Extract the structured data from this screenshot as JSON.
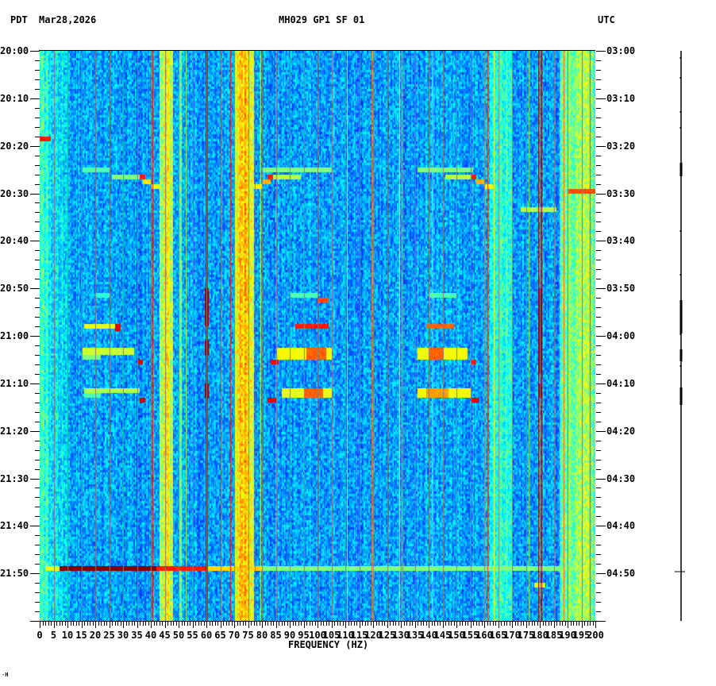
{
  "header": {
    "timezone_left": "PDT",
    "date": "Mar28,2026",
    "title": "MH029 GP1 SF 01",
    "timezone_right": "UTC"
  },
  "footer": {
    "corner_mark": "⋅H"
  },
  "chart_data": {
    "type": "heatmap",
    "title": "MH029 GP1 SF 01",
    "subtitle": "Mar28,2026",
    "xlabel": "FREQUENCY (HZ)",
    "ylabel_left": "PDT",
    "ylabel_right": "UTC",
    "xlim": [
      0,
      200
    ],
    "x_ticks": [
      0,
      5,
      10,
      15,
      20,
      25,
      30,
      35,
      40,
      45,
      50,
      55,
      60,
      65,
      70,
      75,
      80,
      85,
      90,
      95,
      100,
      105,
      110,
      115,
      120,
      125,
      130,
      135,
      140,
      145,
      150,
      155,
      160,
      165,
      170,
      175,
      180,
      185,
      190,
      195,
      200
    ],
    "x_tick_labels": [
      "0",
      "5",
      "10",
      "15",
      "20",
      "25",
      "30",
      "35",
      "40",
      "45",
      "50",
      "55",
      "60",
      "65",
      "70",
      "75",
      "80",
      "85",
      "90",
      "95",
      "100",
      "105",
      "110",
      "115",
      "120",
      "125",
      "130",
      "135",
      "140",
      "145",
      "150",
      "155",
      "160",
      "165",
      "170",
      "175",
      "180",
      "185",
      "190",
      "195",
      "200"
    ],
    "y_ticks_left": [
      "20:00",
      "20:10",
      "20:20",
      "20:30",
      "20:40",
      "20:50",
      "21:00",
      "21:10",
      "21:20",
      "21:30",
      "21:40",
      "21:50"
    ],
    "y_ticks_right": [
      "03:00",
      "03:10",
      "03:20",
      "03:30",
      "03:40",
      "03:50",
      "04:00",
      "04:10",
      "04:20",
      "04:30",
      "04:40",
      "04:50"
    ],
    "time_span_minutes": 120,
    "minor_tick_minutes": 2,
    "colormap": "jet",
    "colormap_stops": [
      "#00008f",
      "#0000ff",
      "#0080ff",
      "#00ffff",
      "#80ff80",
      "#ffff00",
      "#ff8000",
      "#ff0000",
      "#800000"
    ],
    "background_level": 0.28,
    "grid_lines_hz": [
      5,
      10,
      15,
      20,
      25,
      30,
      35,
      40,
      45,
      50,
      55,
      60,
      65,
      70,
      75,
      80,
      85,
      90,
      95,
      100,
      105,
      110,
      115,
      120,
      125,
      130,
      135,
      140,
      145,
      150,
      155,
      160,
      165,
      170,
      175,
      180,
      185,
      190,
      195
    ],
    "grid_color": "#808080",
    "continuous_bands": [
      {
        "f0": 0,
        "f1": 3,
        "level": 0.42
      },
      {
        "f0": 3,
        "f1": 10,
        "level": 0.36
      },
      {
        "f0": 43,
        "f1": 48,
        "level": 0.55
      },
      {
        "f0": 44.5,
        "f1": 46.5,
        "level": 0.62
      },
      {
        "f0": 50,
        "f1": 51,
        "level": 0.45
      },
      {
        "f0": 70,
        "f1": 77,
        "level": 0.62
      },
      {
        "f0": 72,
        "f1": 75,
        "level": 0.68
      },
      {
        "f0": 162,
        "f1": 170,
        "level": 0.42
      },
      {
        "f0": 187,
        "f1": 200,
        "level": 0.48
      },
      {
        "f0": 193,
        "f1": 198,
        "level": 0.55
      }
    ],
    "tonal_lines": [
      {
        "f": 40.5,
        "level": 0.85
      },
      {
        "f": 46.5,
        "level": 0.6
      },
      {
        "f": 52.5,
        "level": 0.58
      },
      {
        "f": 59.7,
        "level": 0.95
      },
      {
        "f": 60.3,
        "level": 0.9
      },
      {
        "f": 68.5,
        "level": 0.85
      },
      {
        "f": 77.5,
        "level": 0.8
      },
      {
        "f": 79.5,
        "level": 0.55
      },
      {
        "f": 95,
        "level": 0.6
      },
      {
        "f": 110.5,
        "level": 0.52
      },
      {
        "f": 119.5,
        "level": 0.78
      },
      {
        "f": 129.5,
        "level": 0.55
      },
      {
        "f": 130.5,
        "level": 0.78
      },
      {
        "f": 141.5,
        "level": 0.5
      },
      {
        "f": 161,
        "level": 0.82
      },
      {
        "f": 163.5,
        "level": 0.62
      },
      {
        "f": 176,
        "level": 0.55
      },
      {
        "f": 179.4,
        "level": 0.98
      },
      {
        "f": 180,
        "level": 1.0
      },
      {
        "f": 180.6,
        "level": 0.98
      },
      {
        "f": 188.5,
        "level": 0.78
      },
      {
        "f": 190.5,
        "level": 0.65
      },
      {
        "f": 198,
        "level": 0.82
      }
    ],
    "events": [
      {
        "label": "transient",
        "t0": 18,
        "t1": 19,
        "f0": 0,
        "f1": 4,
        "level": 0.85
      },
      {
        "label": "sweep-1a",
        "t0": 24.5,
        "t1": 25.5,
        "f0": 15,
        "f1": 25,
        "level": 0.45
      },
      {
        "label": "sweep-1b",
        "t0": 26,
        "t1": 27,
        "f0": 26,
        "f1": 37,
        "level": 0.5
      },
      {
        "label": "sweep-1c",
        "t0": 26,
        "t1": 27,
        "f0": 36,
        "f1": 38,
        "level": 0.85
      },
      {
        "label": "sweep-1d",
        "t0": 27,
        "t1": 28,
        "f0": 37,
        "f1": 40,
        "level": 0.65
      },
      {
        "label": "sweep-1e",
        "t0": 28,
        "t1": 29,
        "f0": 40,
        "f1": 43,
        "level": 0.6
      },
      {
        "label": "sweep-2a",
        "t0": 24.5,
        "t1": 25.5,
        "f0": 80,
        "f1": 105,
        "level": 0.5
      },
      {
        "label": "sweep-2b",
        "t0": 26,
        "t1": 27,
        "f0": 83,
        "f1": 94,
        "level": 0.55
      },
      {
        "label": "sweep-2c",
        "t0": 26,
        "t1": 27,
        "f0": 82,
        "f1": 84,
        "level": 0.85
      },
      {
        "label": "sweep-2d",
        "t0": 27,
        "t1": 28,
        "f0": 80,
        "f1": 83,
        "level": 0.7
      },
      {
        "label": "sweep-2e",
        "t0": 28,
        "t1": 29,
        "f0": 77,
        "f1": 80,
        "level": 0.62
      },
      {
        "label": "sweep-3a",
        "t0": 24.5,
        "t1": 25.5,
        "f0": 136,
        "f1": 156,
        "level": 0.5
      },
      {
        "label": "sweep-3b",
        "t0": 26,
        "t1": 27,
        "f0": 146,
        "f1": 156,
        "level": 0.55
      },
      {
        "label": "sweep-3c",
        "t0": 26,
        "t1": 27,
        "f0": 155,
        "f1": 157,
        "level": 0.85
      },
      {
        "label": "sweep-3d",
        "t0": 27,
        "t1": 28,
        "f0": 157,
        "f1": 160,
        "level": 0.7
      },
      {
        "label": "sweep-3e",
        "t0": 28,
        "t1": 29,
        "f0": 160,
        "f1": 163,
        "level": 0.62
      },
      {
        "label": "sweep-4a",
        "t0": 29,
        "t1": 30,
        "f0": 190,
        "f1": 200,
        "level": 0.8
      },
      {
        "label": "line-33",
        "t0": 33,
        "t1": 34,
        "f0": 173,
        "f1": 186,
        "level": 0.55
      },
      {
        "label": "pre-1",
        "t0": 51,
        "t1": 52,
        "f0": 20,
        "f1": 25,
        "level": 0.42
      },
      {
        "label": "pre-2",
        "t0": 51,
        "t1": 52,
        "f0": 90,
        "f1": 100,
        "level": 0.45
      },
      {
        "label": "pre-2b",
        "t0": 52,
        "t1": 53,
        "f0": 100,
        "f1": 104,
        "level": 0.8
      },
      {
        "label": "pre-3",
        "t0": 51,
        "t1": 52,
        "f0": 140,
        "f1": 150,
        "level": 0.45
      },
      {
        "label": "burst-1a",
        "t0": 57.5,
        "t1": 58.5,
        "f0": 16,
        "f1": 27,
        "level": 0.6
      },
      {
        "label": "burst-1a-end",
        "t0": 57.5,
        "t1": 59,
        "f0": 27,
        "f1": 29,
        "level": 0.9
      },
      {
        "label": "burst-1b",
        "t0": 62.5,
        "t1": 64,
        "f0": 15,
        "f1": 34,
        "level": 0.58
      },
      {
        "label": "burst-1c",
        "t0": 64,
        "t1": 65,
        "f0": 15,
        "f1": 22,
        "level": 0.5
      },
      {
        "label": "burst-1d",
        "t0": 65,
        "t1": 66,
        "f0": 35,
        "f1": 37,
        "level": 0.9
      },
      {
        "label": "burst-1e",
        "t0": 71,
        "t1": 72,
        "f0": 16,
        "f1": 36,
        "level": 0.55
      },
      {
        "label": "burst-1f",
        "t0": 72,
        "t1": 73,
        "f0": 16,
        "f1": 22,
        "level": 0.45
      },
      {
        "label": "burst-1g",
        "t0": 73,
        "t1": 74,
        "f0": 36,
        "f1": 38,
        "level": 0.92
      },
      {
        "label": "burst-2a",
        "t0": 57.5,
        "t1": 58.5,
        "f0": 92,
        "f1": 104,
        "level": 0.85
      },
      {
        "label": "burst-2b",
        "t0": 62.5,
        "t1": 65,
        "f0": 85,
        "f1": 105,
        "level": 0.62
      },
      {
        "label": "burst-2b-hot",
        "t0": 62.5,
        "t1": 65,
        "f0": 96,
        "f1": 103,
        "level": 0.78
      },
      {
        "label": "burst-2c",
        "t0": 65,
        "t1": 66,
        "f0": 83,
        "f1": 86,
        "level": 0.88
      },
      {
        "label": "burst-2d",
        "t0": 71,
        "t1": 73,
        "f0": 87,
        "f1": 105,
        "level": 0.6
      },
      {
        "label": "burst-2d-hot",
        "t0": 71,
        "t1": 73,
        "f0": 95,
        "f1": 102,
        "level": 0.78
      },
      {
        "label": "burst-2e",
        "t0": 73,
        "t1": 74,
        "f0": 82,
        "f1": 85,
        "level": 0.9
      },
      {
        "label": "burst-3a",
        "t0": 57.5,
        "t1": 58.5,
        "f0": 139,
        "f1": 149,
        "level": 0.78
      },
      {
        "label": "burst-3b",
        "t0": 62.5,
        "t1": 65,
        "f0": 136,
        "f1": 154,
        "level": 0.62
      },
      {
        "label": "burst-3b-hot",
        "t0": 62.5,
        "t1": 65,
        "f0": 140,
        "f1": 145,
        "level": 0.78
      },
      {
        "label": "burst-3c",
        "t0": 65,
        "t1": 66,
        "f0": 155,
        "f1": 157,
        "level": 0.85
      },
      {
        "label": "burst-3d",
        "t0": 71,
        "t1": 73,
        "f0": 136,
        "f1": 155,
        "level": 0.62
      },
      {
        "label": "burst-3d-hot",
        "t0": 71,
        "t1": 73,
        "f0": 139,
        "f1": 147,
        "level": 0.72
      },
      {
        "label": "burst-3e",
        "t0": 73,
        "t1": 74,
        "f0": 155,
        "f1": 158,
        "level": 0.9
      },
      {
        "label": "broadband-2150-hot",
        "t0": 108.5,
        "t1": 109.5,
        "f0": 7,
        "f1": 42,
        "level": 1.0
      },
      {
        "label": "broadband-2150-mid",
        "t0": 108.5,
        "t1": 109.5,
        "f0": 42,
        "f1": 60,
        "level": 0.85
      },
      {
        "label": "broadband-2150-warm",
        "t0": 108.5,
        "t1": 109.5,
        "f0": 60,
        "f1": 80,
        "level": 0.66
      },
      {
        "label": "broadband-2150-tail",
        "t0": 108.5,
        "t1": 109.5,
        "f0": 80,
        "f1": 200,
        "level": 0.5
      },
      {
        "label": "broadband-2150-start",
        "t0": 108.5,
        "t1": 109.5,
        "f0": 2,
        "f1": 7,
        "level": 0.6
      },
      {
        "label": "line-112",
        "t0": 112,
        "t1": 113,
        "f0": 178,
        "f1": 182,
        "level": 0.6
      }
    ],
    "hot_segments_60hz": [
      [
        50,
        58
      ],
      [
        61,
        64
      ],
      [
        70,
        73
      ]
    ],
    "hot_segments_180hz": [
      [
        50,
        68
      ],
      [
        70,
        73
      ]
    ]
  },
  "side_trace": {
    "x": 858,
    "y0": 64,
    "y1": 782,
    "thick_segments": [
      [
        205,
        222
      ],
      [
        378,
        420
      ],
      [
        440,
        455
      ],
      [
        488,
        510
      ]
    ],
    "tick_marks_y": [
      72,
      97,
      140,
      160,
      290,
      345,
      380,
      420,
      460
    ],
    "event_cross_y": 720
  }
}
